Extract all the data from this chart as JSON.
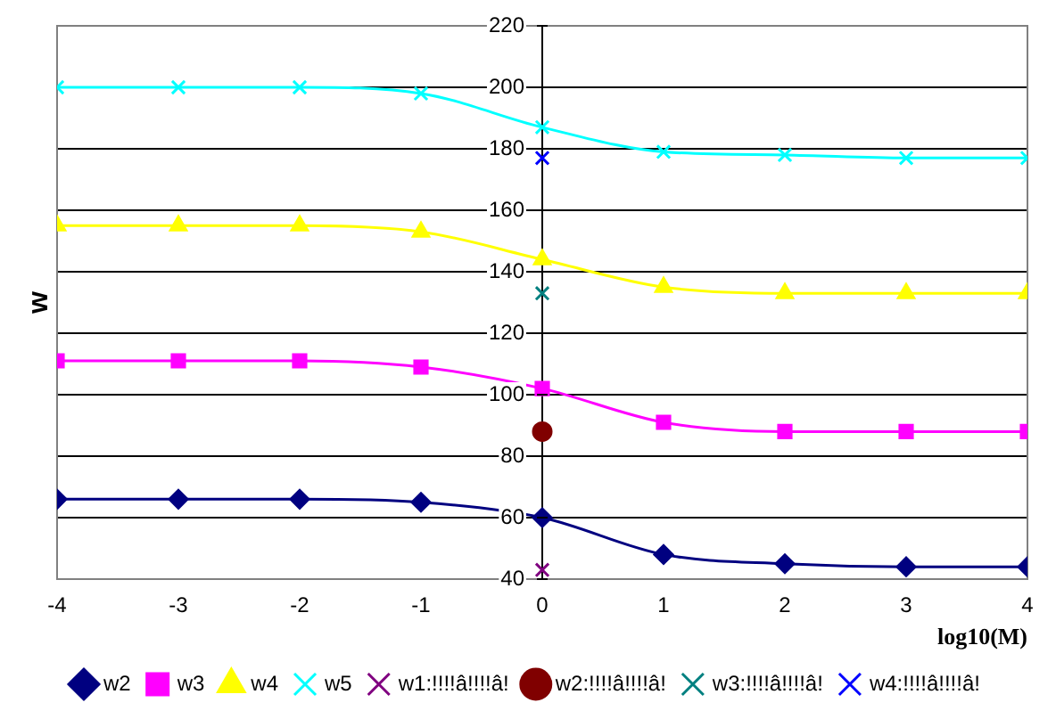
{
  "chart_data": {
    "type": "line",
    "xlabel": "log10(M)",
    "ylabel": "w",
    "xlim": [
      -4,
      4
    ],
    "xticks": [
      -4,
      -3,
      -2,
      -1,
      0,
      1,
      2,
      3,
      4
    ],
    "ylim": [
      40,
      220
    ],
    "yticks": [
      40,
      60,
      80,
      100,
      120,
      140,
      160,
      180,
      200,
      220
    ],
    "grid": "y",
    "legend": "bottom",
    "series": [
      {
        "name": "w2",
        "color": "#000080",
        "marker": "diamond",
        "x": [
          -4,
          -3,
          -2,
          -1,
          0,
          1,
          2,
          3,
          4
        ],
        "values": [
          66,
          66,
          66,
          65,
          60,
          48,
          45,
          44,
          44
        ]
      },
      {
        "name": "w3",
        "color": "#ff00ff",
        "marker": "square",
        "x": [
          -4,
          -3,
          -2,
          -1,
          0,
          1,
          2,
          3,
          4
        ],
        "values": [
          111,
          111,
          111,
          109,
          102,
          91,
          88,
          88,
          88
        ]
      },
      {
        "name": "w4",
        "color": "#ffff00",
        "marker": "triangle",
        "x": [
          -4,
          -3,
          -2,
          -1,
          0,
          1,
          2,
          3,
          4
        ],
        "values": [
          155,
          155,
          155,
          153,
          144,
          135,
          133,
          133,
          133
        ]
      },
      {
        "name": "w5",
        "color": "#00ffff",
        "marker": "cross",
        "x": [
          -4,
          -3,
          -2,
          -1,
          0,
          1,
          2,
          3,
          4
        ],
        "values": [
          200,
          200,
          200,
          198,
          187,
          179,
          178,
          177,
          177
        ]
      },
      {
        "name": "w1:!!!!â!!!!â!",
        "color": "#800080",
        "marker": "cross",
        "x": [
          0
        ],
        "values": [
          43
        ]
      },
      {
        "name": "w2:!!!!â!!!!â!",
        "color": "#800000",
        "marker": "circle",
        "x": [
          0
        ],
        "values": [
          88
        ]
      },
      {
        "name": "w3:!!!!â!!!!â!",
        "color": "#008080",
        "marker": "cross",
        "x": [
          0
        ],
        "values": [
          133
        ]
      },
      {
        "name": "w4:!!!!â!!!!â!",
        "color": "#0000ff",
        "marker": "cross",
        "x": [
          0
        ],
        "values": [
          177
        ]
      }
    ]
  }
}
